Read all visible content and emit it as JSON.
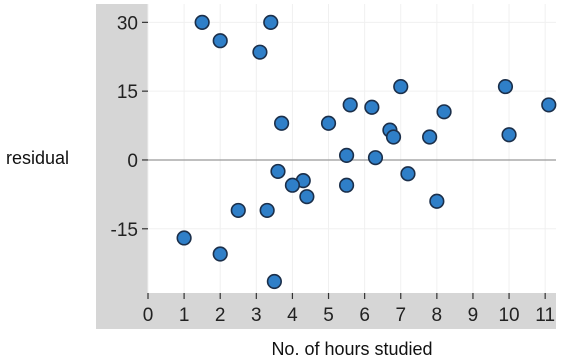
{
  "chart_data": {
    "type": "scatter",
    "title": "",
    "xlabel": "No. of hours studied",
    "ylabel": "residual",
    "xlim": [
      0,
      11.3
    ],
    "ylim": [
      -29,
      34
    ],
    "x_ticks": [
      "0",
      "1",
      "2",
      "3",
      "4",
      "5",
      "6",
      "7",
      "8",
      "9",
      "10",
      "11"
    ],
    "y_ticks": [
      "30",
      "15",
      "0",
      "-15"
    ],
    "grid": true,
    "zero_line": true,
    "colors": {
      "point_fill": "#2f7fc8",
      "point_stroke": "#1b2f4a",
      "frame": "#d6d6d6",
      "grid": "#f0f0f0",
      "zero_line": "#999999"
    },
    "points": [
      {
        "x": 1.5,
        "y": 30
      },
      {
        "x": 3.4,
        "y": 30
      },
      {
        "x": 2.0,
        "y": 26
      },
      {
        "x": 3.1,
        "y": 23.5
      },
      {
        "x": 7.0,
        "y": 16
      },
      {
        "x": 9.9,
        "y": 16
      },
      {
        "x": 11.1,
        "y": 12
      },
      {
        "x": 5.6,
        "y": 12
      },
      {
        "x": 6.2,
        "y": 11.5
      },
      {
        "x": 8.2,
        "y": 10.5
      },
      {
        "x": 3.7,
        "y": 8
      },
      {
        "x": 5.0,
        "y": 8
      },
      {
        "x": 6.7,
        "y": 6.5
      },
      {
        "x": 6.8,
        "y": 5
      },
      {
        "x": 7.8,
        "y": 5
      },
      {
        "x": 10.0,
        "y": 5.5
      },
      {
        "x": 5.5,
        "y": 1
      },
      {
        "x": 6.3,
        "y": 0.5
      },
      {
        "x": 3.6,
        "y": -2.5
      },
      {
        "x": 7.2,
        "y": -3
      },
      {
        "x": 4.3,
        "y": -4.5
      },
      {
        "x": 4.0,
        "y": -5.5
      },
      {
        "x": 5.5,
        "y": -5.5
      },
      {
        "x": 4.4,
        "y": -8
      },
      {
        "x": 8.0,
        "y": -9
      },
      {
        "x": 2.5,
        "y": -11
      },
      {
        "x": 3.3,
        "y": -11
      },
      {
        "x": 1.0,
        "y": -17
      },
      {
        "x": 2.0,
        "y": -20.5
      },
      {
        "x": 3.5,
        "y": -26.5
      }
    ]
  }
}
